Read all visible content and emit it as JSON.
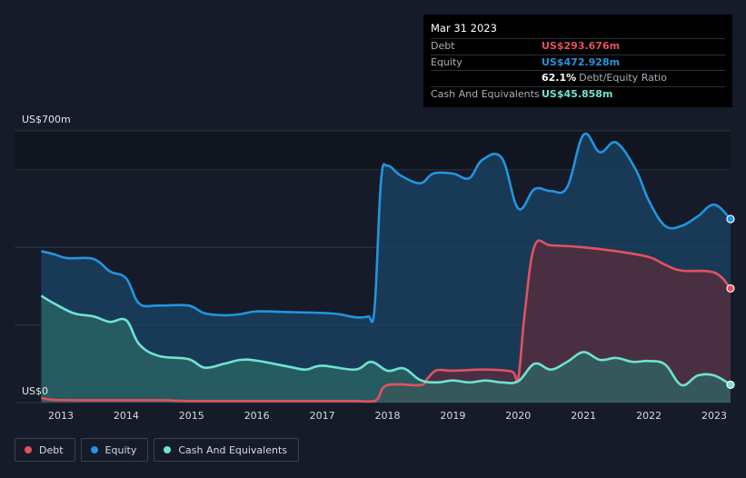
{
  "tooltip": {
    "date": "Mar 31 2023",
    "debt_label": "Debt",
    "debt_value": "US$293.676m",
    "equity_label": "Equity",
    "equity_value": "US$472.928m",
    "ratio_value": "62.1%",
    "ratio_label": "Debt/Equity Ratio",
    "cash_label": "Cash And Equivalents",
    "cash_value": "US$45.858m"
  },
  "legend": {
    "debt": "Debt",
    "equity": "Equity",
    "cash": "Cash And Equivalents"
  },
  "colors": {
    "debt": "#e2525f",
    "equity": "#2394df",
    "cash": "#6fe3cf"
  },
  "chart_data": {
    "type": "area",
    "ylabel_top": "US$700m",
    "ylabel_bottom": "US$0",
    "ylim": [
      0,
      700
    ],
    "xlim": [
      2012.7,
      2023.25
    ],
    "x_ticks": [
      "2013",
      "2014",
      "2015",
      "2016",
      "2017",
      "2018",
      "2019",
      "2020",
      "2021",
      "2022",
      "2023"
    ],
    "series": [
      {
        "name": "Equity",
        "points": [
          [
            2012.7,
            390
          ],
          [
            2012.9,
            382
          ],
          [
            2013.1,
            372
          ],
          [
            2013.5,
            370
          ],
          [
            2013.75,
            338
          ],
          [
            2014.0,
            320
          ],
          [
            2014.2,
            255
          ],
          [
            2014.5,
            250
          ],
          [
            2014.95,
            250
          ],
          [
            2015.2,
            230
          ],
          [
            2015.5,
            225
          ],
          [
            2015.75,
            228
          ],
          [
            2016.0,
            235
          ],
          [
            2016.5,
            233
          ],
          [
            2017.0,
            231
          ],
          [
            2017.25,
            228
          ],
          [
            2017.5,
            220
          ],
          [
            2017.7,
            222
          ],
          [
            2017.8,
            240
          ],
          [
            2017.9,
            570
          ],
          [
            2018.0,
            610
          ],
          [
            2018.2,
            585
          ],
          [
            2018.5,
            565
          ],
          [
            2018.7,
            590
          ],
          [
            2019.0,
            590
          ],
          [
            2019.25,
            578
          ],
          [
            2019.45,
            625
          ],
          [
            2019.75,
            630
          ],
          [
            2020.0,
            500
          ],
          [
            2020.25,
            550
          ],
          [
            2020.5,
            545
          ],
          [
            2020.75,
            555
          ],
          [
            2021.0,
            690
          ],
          [
            2021.25,
            645
          ],
          [
            2021.5,
            670
          ],
          [
            2021.8,
            600
          ],
          [
            2022.0,
            520
          ],
          [
            2022.25,
            455
          ],
          [
            2022.5,
            455
          ],
          [
            2022.75,
            480
          ],
          [
            2023.0,
            510
          ],
          [
            2023.25,
            473
          ]
        ]
      },
      {
        "name": "Debt",
        "points": [
          [
            2012.7,
            12
          ],
          [
            2012.9,
            7
          ],
          [
            2013.5,
            6
          ],
          [
            2014.5,
            6
          ],
          [
            2014.95,
            4
          ],
          [
            2015.5,
            4
          ],
          [
            2016.5,
            4
          ],
          [
            2017.0,
            4
          ],
          [
            2017.5,
            4
          ],
          [
            2017.75,
            3
          ],
          [
            2017.85,
            10
          ],
          [
            2018.0,
            45
          ],
          [
            2018.5,
            45
          ],
          [
            2018.6,
            60
          ],
          [
            2018.75,
            83
          ],
          [
            2019.0,
            82
          ],
          [
            2019.5,
            85
          ],
          [
            2019.9,
            80
          ],
          [
            2020.0,
            62
          ],
          [
            2020.1,
            230
          ],
          [
            2020.25,
            403
          ],
          [
            2020.5,
            405
          ],
          [
            2021.0,
            400
          ],
          [
            2021.5,
            390
          ],
          [
            2022.0,
            375
          ],
          [
            2022.25,
            355
          ],
          [
            2022.5,
            340
          ],
          [
            2023.0,
            335
          ],
          [
            2023.25,
            294
          ]
        ]
      },
      {
        "name": "Cash And Equivalents",
        "points": [
          [
            2012.7,
            275
          ],
          [
            2012.9,
            255
          ],
          [
            2013.2,
            230
          ],
          [
            2013.5,
            222
          ],
          [
            2013.75,
            208
          ],
          [
            2014.0,
            212
          ],
          [
            2014.2,
            150
          ],
          [
            2014.5,
            120
          ],
          [
            2014.95,
            112
          ],
          [
            2015.2,
            90
          ],
          [
            2015.5,
            100
          ],
          [
            2015.75,
            110
          ],
          [
            2016.0,
            108
          ],
          [
            2016.5,
            92
          ],
          [
            2016.75,
            85
          ],
          [
            2017.0,
            95
          ],
          [
            2017.5,
            85
          ],
          [
            2017.75,
            105
          ],
          [
            2018.0,
            82
          ],
          [
            2018.25,
            88
          ],
          [
            2018.5,
            58
          ],
          [
            2018.75,
            52
          ],
          [
            2019.0,
            57
          ],
          [
            2019.25,
            52
          ],
          [
            2019.5,
            57
          ],
          [
            2019.75,
            52
          ],
          [
            2020.0,
            55
          ],
          [
            2020.25,
            100
          ],
          [
            2020.5,
            85
          ],
          [
            2020.75,
            105
          ],
          [
            2021.0,
            130
          ],
          [
            2021.25,
            110
          ],
          [
            2021.5,
            115
          ],
          [
            2021.75,
            105
          ],
          [
            2022.0,
            107
          ],
          [
            2022.25,
            98
          ],
          [
            2022.5,
            45
          ],
          [
            2022.75,
            70
          ],
          [
            2023.0,
            70
          ],
          [
            2023.25,
            46
          ]
        ]
      }
    ]
  }
}
